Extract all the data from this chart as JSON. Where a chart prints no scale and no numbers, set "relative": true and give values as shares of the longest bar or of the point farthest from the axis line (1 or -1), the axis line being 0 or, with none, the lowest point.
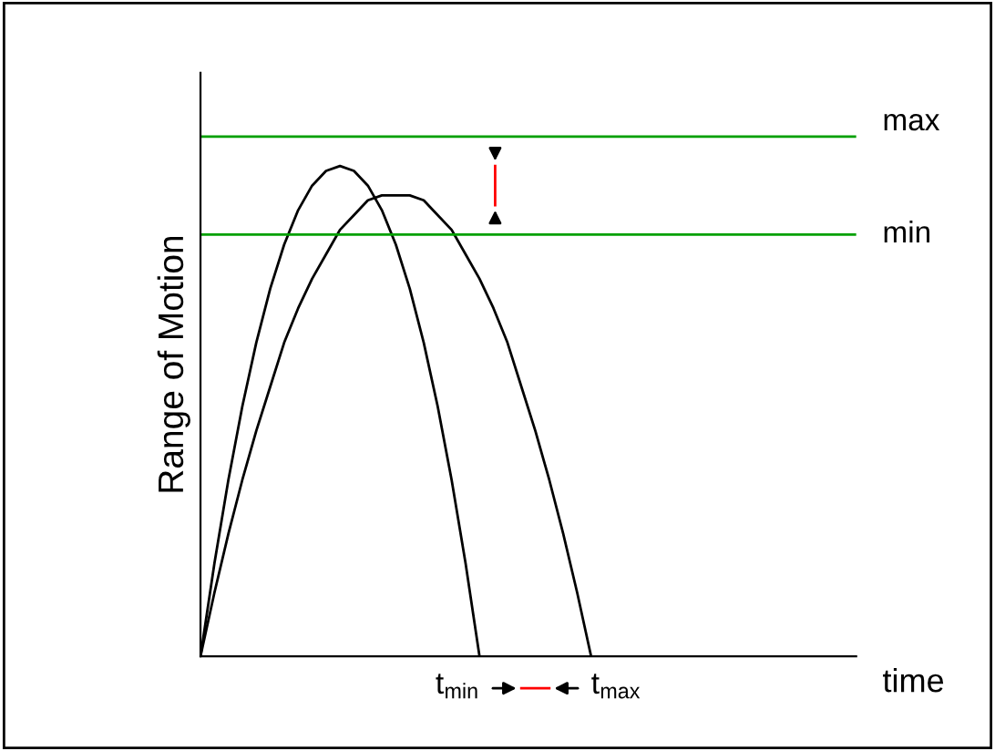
{
  "chart_data": {
    "type": "line",
    "relative": true,
    "xlabel": "time",
    "ylabel": "Range of Motion",
    "legend": false,
    "marker": "none",
    "line_style": "solid",
    "categories": [
      null,
      null,
      null,
      null,
      null,
      null,
      null,
      null,
      null,
      null,
      null,
      null,
      null,
      null,
      null,
      null,
      null,
      null,
      null,
      null,
      null,
      null,
      null,
      null,
      null,
      null,
      null,
      null,
      null,
      null,
      null,
      null,
      null,
      null,
      null,
      null,
      null,
      null,
      null,
      null,
      null,
      null,
      null,
      null,
      null,
      null,
      null,
      null
    ],
    "series": [
      {
        "color": "#000000",
        "values": [
          0,
          0.19,
          0.36,
          0.51,
          0.64,
          0.75,
          0.84,
          0.91,
          0.96,
          0.99,
          1,
          0.99,
          0.96,
          0.91,
          0.84,
          0.75,
          0.64,
          0.51,
          0.36,
          0.19,
          0,
          null,
          null,
          null,
          null,
          null,
          null,
          null,
          null,
          null,
          null,
          null,
          null,
          null,
          null,
          null,
          null,
          null,
          null,
          null,
          null,
          null,
          null,
          null,
          null,
          null,
          null,
          null
        ]
      },
      {
        "color": "#000000",
        "values": [
          0,
          0.13,
          0.25,
          0.36,
          0.46,
          0.55,
          0.64,
          0.71,
          0.77,
          0.82,
          0.87,
          0.9,
          0.93,
          0.94,
          0.94,
          0.94,
          0.93,
          0.9,
          0.87,
          0.82,
          0.77,
          0.71,
          0.64,
          0.55,
          0.46,
          0.36,
          0.25,
          0.13,
          0,
          null,
          null,
          null,
          null,
          null,
          null,
          null,
          null,
          null,
          null,
          null,
          null,
          null,
          null,
          null,
          null,
          null,
          null,
          null
        ]
      }
    ],
    "ref_lines": [
      {
        "axis": "y",
        "value": 1.06,
        "label": "max",
        "color": "#00a000"
      },
      {
        "axis": "y",
        "value": 0.86,
        "label": "min",
        "color": "#00a000"
      }
    ],
    "annotations": [
      "t$_{min}$",
      "t$_{max}$"
    ]
  }
}
